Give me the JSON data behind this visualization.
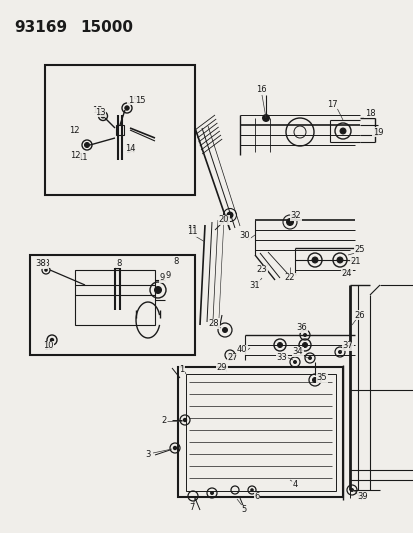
{
  "title1": "93169",
  "title2": "15000",
  "bg_color": "#f0eeea",
  "fg_color": "#1a1a1a",
  "fig_width": 4.14,
  "fig_height": 5.33,
  "dpi": 100,
  "title_fontsize": 11,
  "label_fontsize": 6.0
}
